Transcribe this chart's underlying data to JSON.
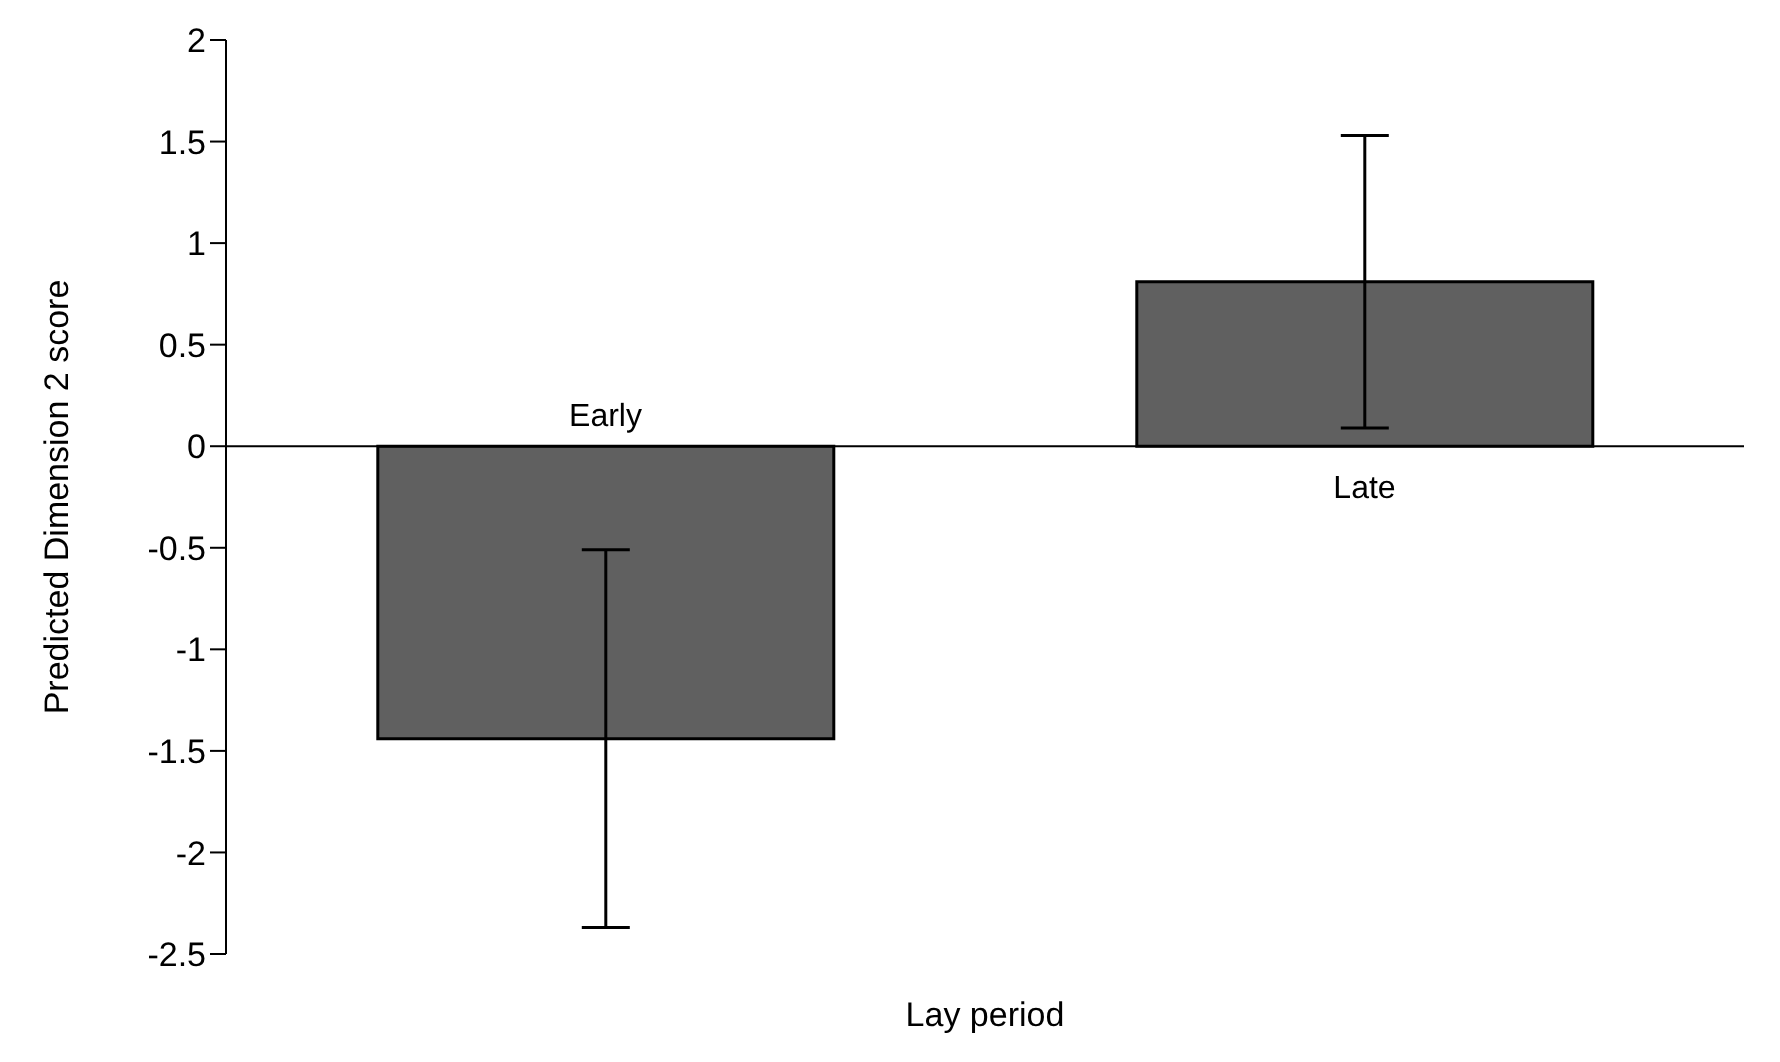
{
  "chart_data": {
    "type": "bar",
    "xlabel": "Lay period",
    "ylabel": "Predicted Dimension 2 score",
    "categories": [
      "Early",
      "Late"
    ],
    "values": [
      -1.44,
      0.81
    ],
    "errors": [
      0.93,
      0.72
    ],
    "color": "#606060",
    "ylim": [
      -2.5,
      2
    ],
    "yticks": [
      -2.5,
      -2,
      -1.5,
      -1,
      -0.5,
      0,
      0.5,
      1,
      1.5,
      2
    ]
  }
}
